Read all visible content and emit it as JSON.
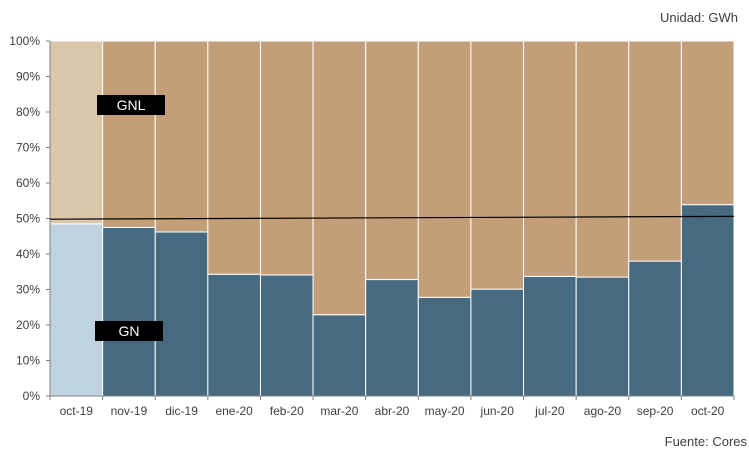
{
  "unit_note": "Unidad: GWh",
  "source_note": "Fuente: Cores",
  "chart_data": {
    "type": "bar",
    "stacked": true,
    "categories": [
      "oct-19",
      "nov-19",
      "dic-19",
      "ene-20",
      "feb-20",
      "mar-20",
      "abr-20",
      "may-20",
      "jun-20",
      "jul-20",
      "ago-20",
      "sep-20",
      "oct-20"
    ],
    "series": [
      {
        "name": "GN",
        "color": "#466a80",
        "highlight_color": "#bfd2df",
        "values": [
          48.5,
          47.5,
          46.2,
          34.3,
          34.1,
          22.9,
          32.8,
          27.8,
          30.1,
          33.7,
          33.5,
          38.0,
          53.9
        ]
      },
      {
        "name": "GNL",
        "color": "#c29f78",
        "highlight_color": "#dcc6ab",
        "values": [
          51.5,
          52.5,
          53.8,
          65.7,
          65.9,
          77.1,
          67.2,
          72.2,
          69.9,
          66.3,
          66.5,
          62.0,
          46.1
        ]
      }
    ],
    "highlighted_category": "oct-19",
    "y_ticks": [
      "0%",
      "10%",
      "20%",
      "30%",
      "40%",
      "50%",
      "60%",
      "70%",
      "80%",
      "90%",
      "100%"
    ],
    "ylim": [
      0,
      100
    ],
    "reference_line": {
      "start": 49.8,
      "end": 50.6
    }
  }
}
